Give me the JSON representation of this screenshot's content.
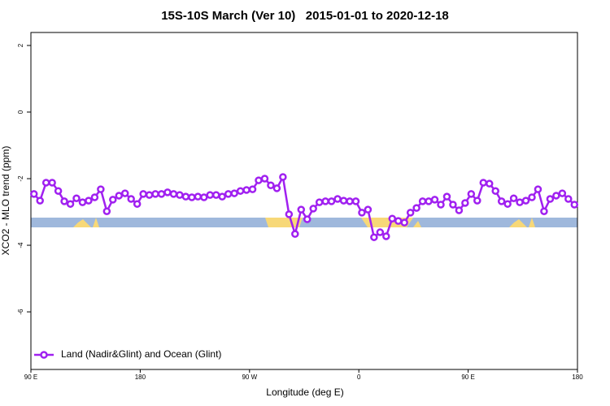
{
  "chart_data": {
    "type": "line",
    "title": "15S-10S March (Ver 10)   2015-01-01 to 2020-12-18",
    "x_label": "Longitude (deg E)",
    "y_label": "XCO2 - MLO trend (ppm)",
    "xlim": [
      90,
      540
    ],
    "ylim": [
      -7.73,
      2.39
    ],
    "xticks": [
      {
        "value": 90,
        "label": "90 E"
      },
      {
        "value": 180,
        "label": "180"
      },
      {
        "value": 270,
        "label": "90 W"
      },
      {
        "value": 360,
        "label": "0"
      },
      {
        "value": 450,
        "label": "90 E"
      },
      {
        "value": 540,
        "label": "180"
      }
    ],
    "yticks": [
      2,
      0,
      -2,
      -4,
      -6
    ],
    "legend": "bottomleft",
    "x": [
      92.5,
      97.5,
      102.5,
      107.5,
      112.5,
      117.5,
      122.5,
      127.5,
      132.5,
      137.5,
      142.5,
      147.5,
      152.5,
      157.5,
      162.5,
      167.5,
      172.5,
      177.5,
      182.5,
      187.5,
      192.5,
      197.5,
      202.5,
      207.5,
      212.5,
      217.5,
      222.5,
      227.5,
      232.5,
      237.5,
      242.5,
      247.5,
      252.5,
      257.5,
      262.5,
      267.5,
      272.5,
      277.5,
      282.5,
      287.5,
      292.5,
      297.5,
      302.5,
      307.5,
      312.5,
      317.5,
      322.5,
      327.5,
      332.5,
      337.5,
      342.5,
      347.5,
      352.5,
      357.5,
      362.5,
      367.5,
      372.5,
      377.5,
      382.5,
      387.5,
      392.5,
      397.5,
      402.5,
      407.5,
      412.5,
      417.5,
      422.5,
      427.5,
      432.5,
      437.5,
      442.5,
      447.5,
      452.5,
      457.5,
      462.5,
      467.5,
      472.5,
      477.5,
      482.5,
      487.5,
      492.5,
      497.5,
      502.5,
      507.5,
      512.5,
      517.5,
      522.5,
      527.5,
      532.5,
      537.5
    ],
    "series": [
      {
        "name": "Land (Nadir&Glint) and Ocean (Glint)",
        "color": "#a020f0",
        "values": [
          -2.46,
          -2.66,
          -2.12,
          -2.12,
          -2.37,
          -2.68,
          -2.76,
          -2.59,
          -2.71,
          -2.66,
          -2.56,
          -2.32,
          -2.98,
          -2.63,
          -2.51,
          -2.44,
          -2.61,
          -2.76,
          -2.46,
          -2.49,
          -2.46,
          -2.46,
          -2.41,
          -2.46,
          -2.49,
          -2.54,
          -2.56,
          -2.54,
          -2.56,
          -2.49,
          -2.49,
          -2.54,
          -2.46,
          -2.44,
          -2.37,
          -2.34,
          -2.32,
          -2.05,
          -2.0,
          -2.2,
          -2.29,
          -1.95,
          -3.07,
          -3.66,
          -2.93,
          -3.22,
          -2.9,
          -2.71,
          -2.68,
          -2.68,
          -2.61,
          -2.66,
          -2.68,
          -2.68,
          -3.02,
          -2.93,
          -3.76,
          -3.61,
          -3.73,
          -3.2,
          -3.27,
          -3.32,
          -3.02,
          -2.88,
          -2.68,
          -2.68,
          -2.63,
          -2.78,
          -2.54,
          -2.78,
          -2.95,
          -2.73,
          -2.46,
          -2.66,
          -2.12,
          -2.15,
          -2.37,
          -2.68,
          -2.76,
          -2.59,
          -2.71,
          -2.66,
          -2.56,
          -2.32,
          -2.98,
          -2.61,
          -2.51,
          -2.44,
          -2.61,
          -2.78
        ]
      }
    ]
  }
}
